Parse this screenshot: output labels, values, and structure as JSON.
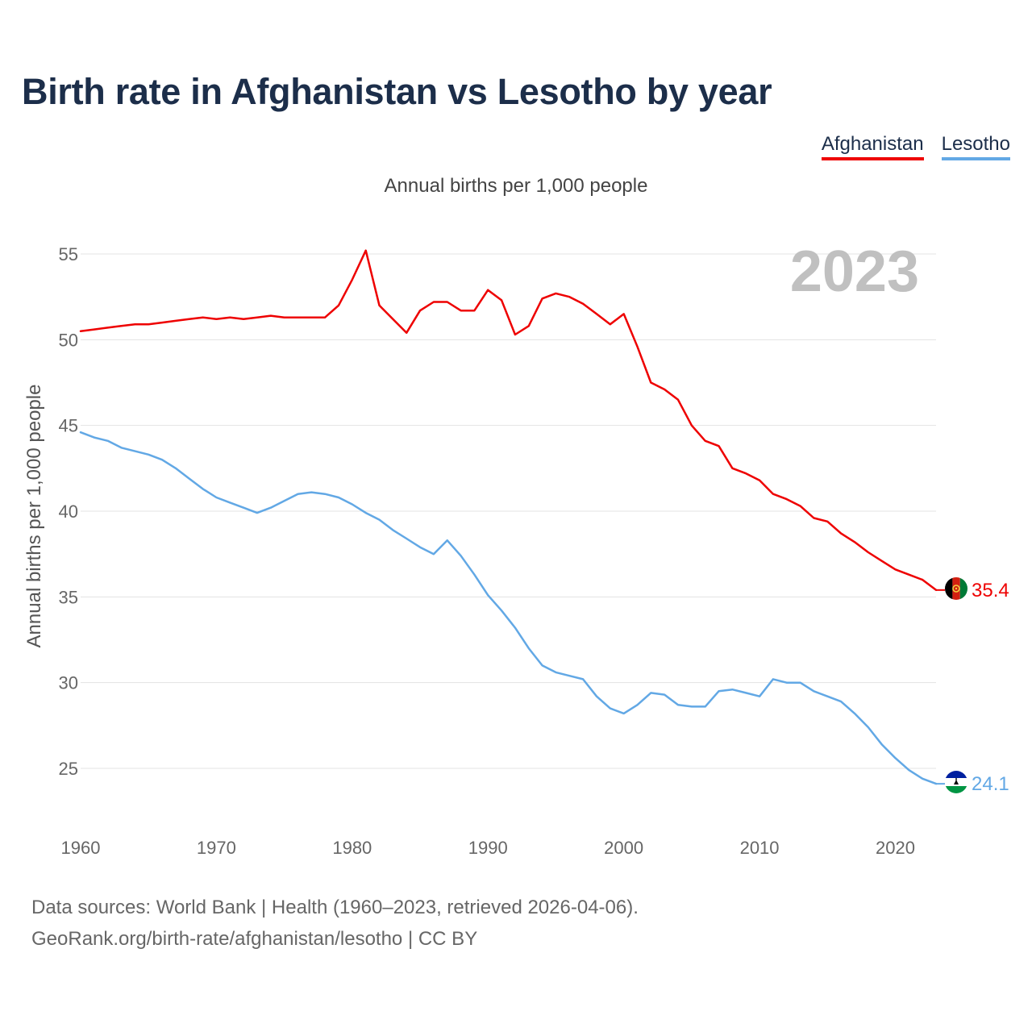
{
  "title": "Birth rate in Afghanistan vs Lesotho by year",
  "legend": [
    {
      "name": "Afghanistan",
      "color": "#ee0000"
    },
    {
      "name": "Lesotho",
      "color": "#62a8e5"
    }
  ],
  "subtitle": "Annual births per 1,000 people",
  "year_display": "2023",
  "source": {
    "line1": "Data sources: World Bank | Health (1960–2023, retrieved 2026-04-06).",
    "line2": "GeoRank.org/birth-rate/afghanistan/lesotho | CC BY"
  },
  "chart_data": {
    "type": "line",
    "title": "Birth rate in Afghanistan vs Lesotho by year",
    "xlabel": "",
    "ylabel": "Annual births per 1,000 people",
    "xlim": [
      1960,
      2023
    ],
    "ylim": [
      22,
      55.5
    ],
    "xticks": [
      1960,
      1970,
      1980,
      1990,
      2000,
      2010,
      2020
    ],
    "yticks": [
      25,
      30,
      35,
      40,
      45,
      50,
      55
    ],
    "grid": true,
    "legend_position": "top-right",
    "x": [
      1960,
      1961,
      1962,
      1963,
      1964,
      1965,
      1966,
      1967,
      1968,
      1969,
      1970,
      1971,
      1972,
      1973,
      1974,
      1975,
      1976,
      1977,
      1978,
      1979,
      1980,
      1981,
      1982,
      1983,
      1984,
      1985,
      1986,
      1987,
      1988,
      1989,
      1990,
      1991,
      1992,
      1993,
      1994,
      1995,
      1996,
      1997,
      1998,
      1999,
      2000,
      2001,
      2002,
      2003,
      2004,
      2005,
      2006,
      2007,
      2008,
      2009,
      2010,
      2011,
      2012,
      2013,
      2014,
      2015,
      2016,
      2017,
      2018,
      2019,
      2020,
      2021,
      2022,
      2023
    ],
    "series": [
      {
        "name": "Afghanistan",
        "color": "#ee0000",
        "end_label": "35.4",
        "values": [
          50.5,
          50.6,
          50.7,
          50.8,
          50.9,
          50.9,
          51.0,
          51.1,
          51.2,
          51.3,
          51.2,
          51.3,
          51.2,
          51.3,
          51.4,
          51.3,
          51.3,
          51.3,
          51.3,
          52.0,
          53.5,
          55.2,
          52.0,
          51.2,
          50.4,
          51.7,
          52.2,
          52.2,
          51.7,
          51.7,
          52.9,
          52.3,
          50.3,
          50.8,
          52.4,
          52.7,
          52.5,
          52.1,
          51.5,
          50.9,
          51.5,
          49.6,
          47.5,
          47.1,
          46.5,
          45.0,
          44.1,
          43.8,
          42.5,
          42.2,
          41.8,
          41.0,
          40.7,
          40.3,
          39.6,
          39.4,
          38.7,
          38.2,
          37.6,
          37.1,
          36.6,
          36.3,
          36.0,
          35.4
        ]
      },
      {
        "name": "Lesotho",
        "color": "#62a8e5",
        "end_label": "24.1",
        "values": [
          44.6,
          44.3,
          44.1,
          43.7,
          43.5,
          43.3,
          43.0,
          42.5,
          41.9,
          41.3,
          40.8,
          40.5,
          40.2,
          39.9,
          40.2,
          40.6,
          41.0,
          41.1,
          41.0,
          40.8,
          40.4,
          39.9,
          39.5,
          38.9,
          38.4,
          37.9,
          37.5,
          38.3,
          37.4,
          36.3,
          35.1,
          34.2,
          33.2,
          32.0,
          31.0,
          30.6,
          30.4,
          30.2,
          29.2,
          28.5,
          28.2,
          28.7,
          29.4,
          29.3,
          28.7,
          28.6,
          28.6,
          29.5,
          29.6,
          29.4,
          29.2,
          30.2,
          30.0,
          30.0,
          29.5,
          29.2,
          28.9,
          28.2,
          27.4,
          26.4,
          25.6,
          24.9,
          24.4,
          24.1
        ]
      }
    ]
  }
}
